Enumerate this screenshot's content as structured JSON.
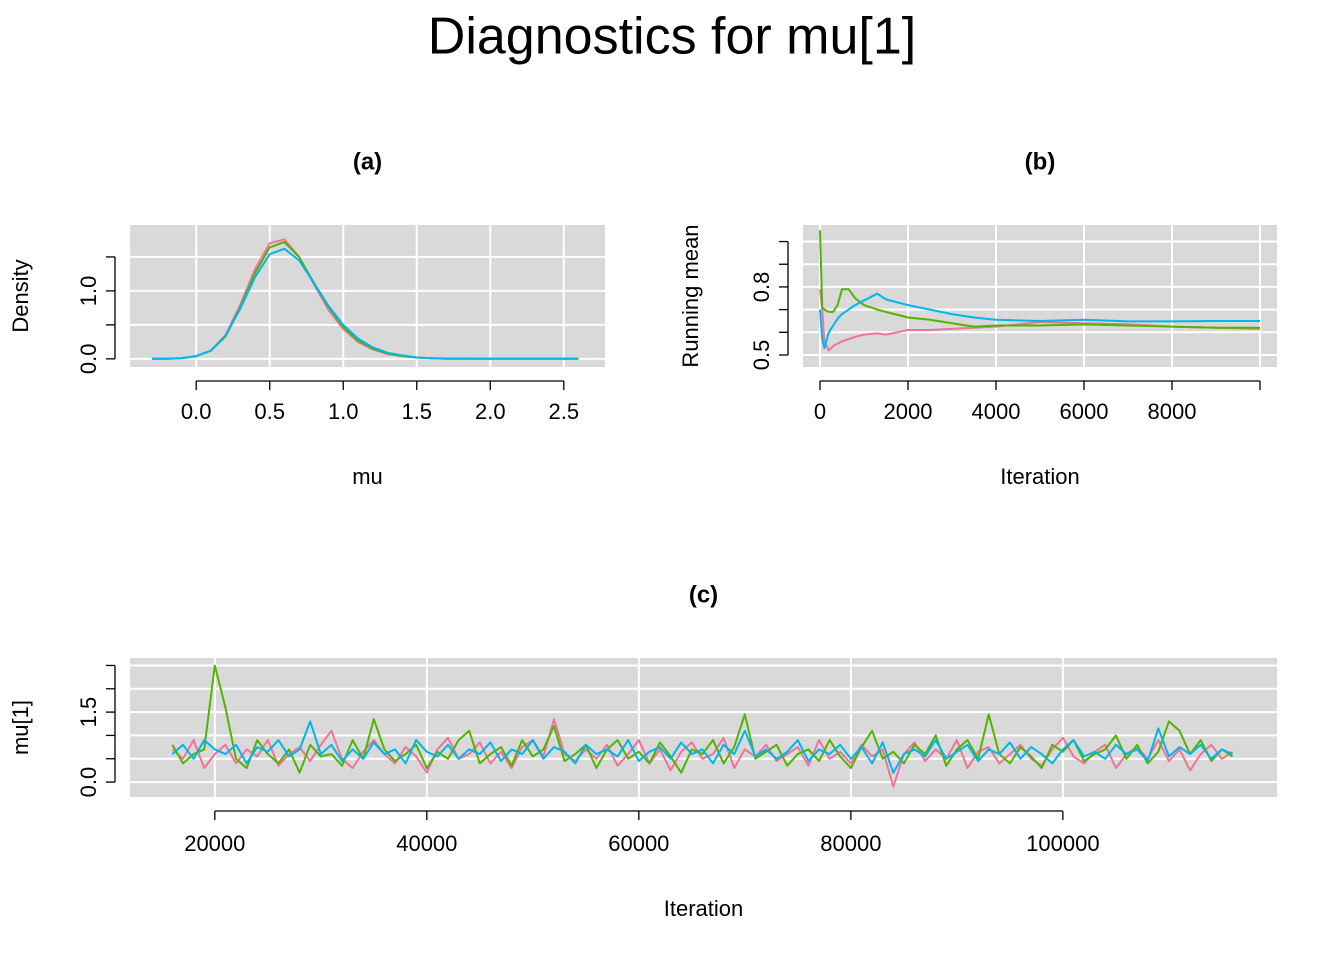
{
  "title": "Diagnostics for mu[1]",
  "chart_data": [
    {
      "type": "line",
      "title": "(a)",
      "xlabel": "mu",
      "ylabel": "Density",
      "x": [
        -0.3,
        -0.2,
        -0.1,
        0,
        0.1,
        0.2,
        0.3,
        0.4,
        0.5,
        0.6,
        0.7,
        0.8,
        0.9,
        1.0,
        1.1,
        1.2,
        1.3,
        1.4,
        1.5,
        1.6,
        1.7,
        1.8,
        1.9,
        2.0,
        2.1,
        2.2,
        2.3,
        2.4,
        2.5,
        2.6
      ],
      "series": [
        {
          "color": "#F0739A",
          "values": [
            0,
            0,
            0.01,
            0.04,
            0.12,
            0.35,
            0.8,
            1.32,
            1.7,
            1.76,
            1.5,
            1.1,
            0.72,
            0.44,
            0.25,
            0.14,
            0.07,
            0.04,
            0.02,
            0.01,
            0,
            0,
            0,
            0,
            0,
            0,
            0,
            0,
            0,
            0
          ]
        },
        {
          "color": "#53B400",
          "values": [
            0,
            0,
            0.01,
            0.04,
            0.12,
            0.33,
            0.76,
            1.26,
            1.64,
            1.72,
            1.5,
            1.12,
            0.76,
            0.47,
            0.27,
            0.15,
            0.08,
            0.04,
            0.02,
            0.01,
            0.005,
            0.005,
            0.004,
            0.004,
            0.003,
            0.003,
            0.003,
            0.003,
            0.003,
            0.003
          ]
        },
        {
          "color": "#00B6EB",
          "values": [
            0,
            0,
            0.01,
            0.04,
            0.12,
            0.34,
            0.74,
            1.2,
            1.54,
            1.62,
            1.45,
            1.12,
            0.78,
            0.5,
            0.3,
            0.17,
            0.09,
            0.05,
            0.02,
            0.01,
            0,
            0,
            0,
            0,
            0,
            0,
            0,
            0,
            0,
            0
          ]
        }
      ],
      "xlim": [
        -0.45,
        2.78
      ],
      "ylim": [
        -0.12,
        1.97
      ],
      "xticks": [
        {
          "value": 0,
          "label": "0.0"
        },
        0.5,
        {
          "value": 1,
          "label": "1.0"
        },
        1.5,
        {
          "value": 2,
          "label": "2.0"
        },
        2.5
      ],
      "yticks": [
        {
          "value": 0,
          "label": "0.0"
        },
        {
          "value": 1,
          "label": "1.0"
        }
      ],
      "yticks_minor": [
        0.5,
        1.5
      ],
      "grid": true
    },
    {
      "type": "line",
      "title": "(b)",
      "xlabel": "Iteration",
      "ylabel": "Running mean",
      "x": [
        0,
        50,
        100,
        200,
        300,
        400,
        500,
        650,
        800,
        1000,
        1300,
        1500,
        2000,
        2500,
        3000,
        3500,
        4000,
        5000,
        6000,
        7000,
        8000,
        9000,
        10000
      ],
      "series": [
        {
          "color": "#F0739A",
          "values": [
            0.79,
            0.7,
            0.56,
            0.52,
            0.54,
            0.55,
            0.56,
            0.57,
            0.58,
            0.59,
            0.595,
            0.59,
            0.61,
            0.61,
            0.615,
            0.62,
            0.625,
            0.645,
            0.64,
            0.635,
            0.625,
            0.62,
            0.615
          ]
        },
        {
          "color": "#53B400",
          "values": [
            1.05,
            0.71,
            0.7,
            0.69,
            0.69,
            0.72,
            0.79,
            0.79,
            0.75,
            0.72,
            0.7,
            0.69,
            0.665,
            0.655,
            0.64,
            0.625,
            0.63,
            0.63,
            0.635,
            0.63,
            0.625,
            0.62,
            0.62
          ]
        },
        {
          "color": "#00B6EB",
          "values": [
            0.7,
            0.57,
            0.53,
            0.6,
            0.63,
            0.66,
            0.68,
            0.7,
            0.72,
            0.74,
            0.77,
            0.745,
            0.72,
            0.7,
            0.68,
            0.665,
            0.655,
            0.65,
            0.655,
            0.648,
            0.648,
            0.65,
            0.65
          ]
        }
      ],
      "xlim": [
        -386,
        10386
      ],
      "ylim": [
        0.447,
        1.073
      ],
      "xticks": [
        0,
        2000,
        4000,
        6000,
        8000
      ],
      "xticks_minor": [
        10000
      ],
      "yticks": [
        0.5,
        0.8
      ],
      "yticks_minor": [
        0.6,
        0.7,
        0.9,
        1.0
      ],
      "grid": true
    },
    {
      "type": "line",
      "title": "(c)",
      "xlabel": "Iteration",
      "ylabel": "mu[1]",
      "x": [
        16000,
        17000,
        18000,
        19000,
        20000,
        21000,
        22000,
        23000,
        24000,
        25000,
        26000,
        27000,
        28000,
        29000,
        30000,
        31000,
        32000,
        33000,
        34000,
        35000,
        36000,
        37000,
        38000,
        39000,
        40000,
        41000,
        42000,
        43000,
        44000,
        45000,
        46000,
        47000,
        48000,
        49000,
        50000,
        51000,
        52000,
        53000,
        54000,
        55000,
        56000,
        57000,
        58000,
        59000,
        60000,
        61000,
        62000,
        63000,
        64000,
        65000,
        66000,
        67000,
        68000,
        69000,
        70000,
        71000,
        72000,
        73000,
        74000,
        75000,
        76000,
        77000,
        78000,
        79000,
        80000,
        81000,
        82000,
        83000,
        84000,
        85000,
        86000,
        87000,
        88000,
        89000,
        90000,
        91000,
        92000,
        93000,
        94000,
        95000,
        96000,
        97000,
        98000,
        99000,
        100000,
        101000,
        102000,
        103000,
        104000,
        105000,
        106000,
        107000,
        108000,
        109000,
        110000,
        111000,
        112000,
        113000,
        114000,
        115000,
        116000
      ],
      "series": [
        {
          "color": "#F0739A",
          "values": [
            0.7,
            0.5,
            0.9,
            0.3,
            0.6,
            0.8,
            0.4,
            0.7,
            0.55,
            0.9,
            0.35,
            0.6,
            0.75,
            0.45,
            0.8,
            1.1,
            0.5,
            0.3,
            0.65,
            0.9,
            0.6,
            0.4,
            0.75,
            0.55,
            0.2,
            0.7,
            0.95,
            0.5,
            0.6,
            0.85,
            0.4,
            0.65,
            0.3,
            0.75,
            0.9,
            0.55,
            1.35,
            0.6,
            0.45,
            0.7,
            0.5,
            0.8,
            0.35,
            0.6,
            0.9,
            0.4,
            0.7,
            0.25,
            0.65,
            0.85,
            0.5,
            0.6,
            0.95,
            0.3,
            0.7,
            0.55,
            0.8,
            0.45,
            0.6,
            0.75,
            0.35,
            0.9,
            0.5,
            0.65,
            0.4,
            0.8,
            0.55,
            0.7,
            -0.1,
            0.6,
            0.85,
            0.45,
            0.7,
            0.5,
            0.9,
            0.3,
            0.65,
            0.75,
            0.4,
            0.6,
            0.8,
            0.5,
            0.35,
            0.7,
            0.95,
            0.55,
            0.4,
            0.65,
            0.8,
            0.3,
            0.6,
            0.75,
            0.5,
            0.9,
            0.45,
            0.7,
            0.25,
            0.6,
            0.8,
            0.5,
            0.65
          ]
        },
        {
          "color": "#53B400",
          "values": [
            0.8,
            0.4,
            0.6,
            0.7,
            2.5,
            1.6,
            0.5,
            0.3,
            0.9,
            0.6,
            0.4,
            0.7,
            0.2,
            0.8,
            0.55,
            0.6,
            0.35,
            0.9,
            0.5,
            1.35,
            0.7,
            0.45,
            0.6,
            0.8,
            0.3,
            0.65,
            0.5,
            0.9,
            1.1,
            0.4,
            0.6,
            0.75,
            0.35,
            0.9,
            0.55,
            0.7,
            1.2,
            0.45,
            0.6,
            0.8,
            0.3,
            0.7,
            0.9,
            0.5,
            0.65,
            0.4,
            0.85,
            0.55,
            0.2,
            0.7,
            0.6,
            0.9,
            0.4,
            0.75,
            1.45,
            0.5,
            0.65,
            0.8,
            0.35,
            0.6,
            0.7,
            0.45,
            0.9,
            0.55,
            0.3,
            0.75,
            1.1,
            0.5,
            0.65,
            0.4,
            0.8,
            0.6,
            1.0,
            0.35,
            0.7,
            0.9,
            0.5,
            1.45,
            0.6,
            0.4,
            0.75,
            0.55,
            0.3,
            0.8,
            0.65,
            0.9,
            0.45,
            0.6,
            0.7,
            1.0,
            0.5,
            0.8,
            0.4,
            0.65,
            1.3,
            1.1,
            0.6,
            0.9,
            0.45,
            0.7,
            0.55
          ]
        },
        {
          "color": "#00B6EB",
          "values": [
            0.6,
            0.8,
            0.5,
            0.9,
            0.7,
            0.6,
            0.8,
            0.4,
            0.75,
            0.65,
            0.9,
            0.55,
            0.7,
            1.3,
            0.6,
            0.8,
            0.45,
            0.7,
            0.5,
            0.85,
            0.6,
            0.7,
            0.4,
            0.9,
            0.65,
            0.55,
            0.8,
            0.5,
            0.7,
            0.6,
            0.85,
            0.45,
            0.7,
            0.6,
            0.9,
            0.5,
            0.75,
            0.65,
            0.4,
            0.8,
            0.6,
            0.7,
            0.55,
            0.9,
            0.45,
            0.65,
            0.75,
            0.5,
            0.85,
            0.6,
            0.7,
            0.4,
            0.8,
            0.6,
            1.1,
            0.55,
            0.7,
            0.5,
            0.65,
            0.9,
            0.45,
            0.7,
            0.6,
            0.8,
            0.5,
            0.75,
            0.4,
            0.85,
            0.2,
            0.6,
            0.7,
            0.55,
            0.9,
            0.5,
            0.65,
            0.8,
            0.45,
            0.7,
            0.6,
            0.85,
            0.5,
            0.75,
            0.6,
            0.4,
            0.7,
            0.9,
            0.55,
            0.65,
            0.5,
            0.8,
            0.6,
            0.7,
            0.45,
            1.15,
            0.55,
            0.75,
            0.6,
            0.8,
            0.5,
            0.7,
            0.6
          ]
        }
      ],
      "xlim": [
        12000,
        120200
      ],
      "ylim": [
        -0.32,
        2.66
      ],
      "xticks": [
        20000,
        40000,
        60000,
        80000,
        100000
      ],
      "yticks": [
        {
          "value": 0,
          "label": "0.0"
        },
        1.5
      ],
      "yticks_minor": [
        0.5,
        1,
        2,
        2.5
      ],
      "grid": true
    }
  ]
}
